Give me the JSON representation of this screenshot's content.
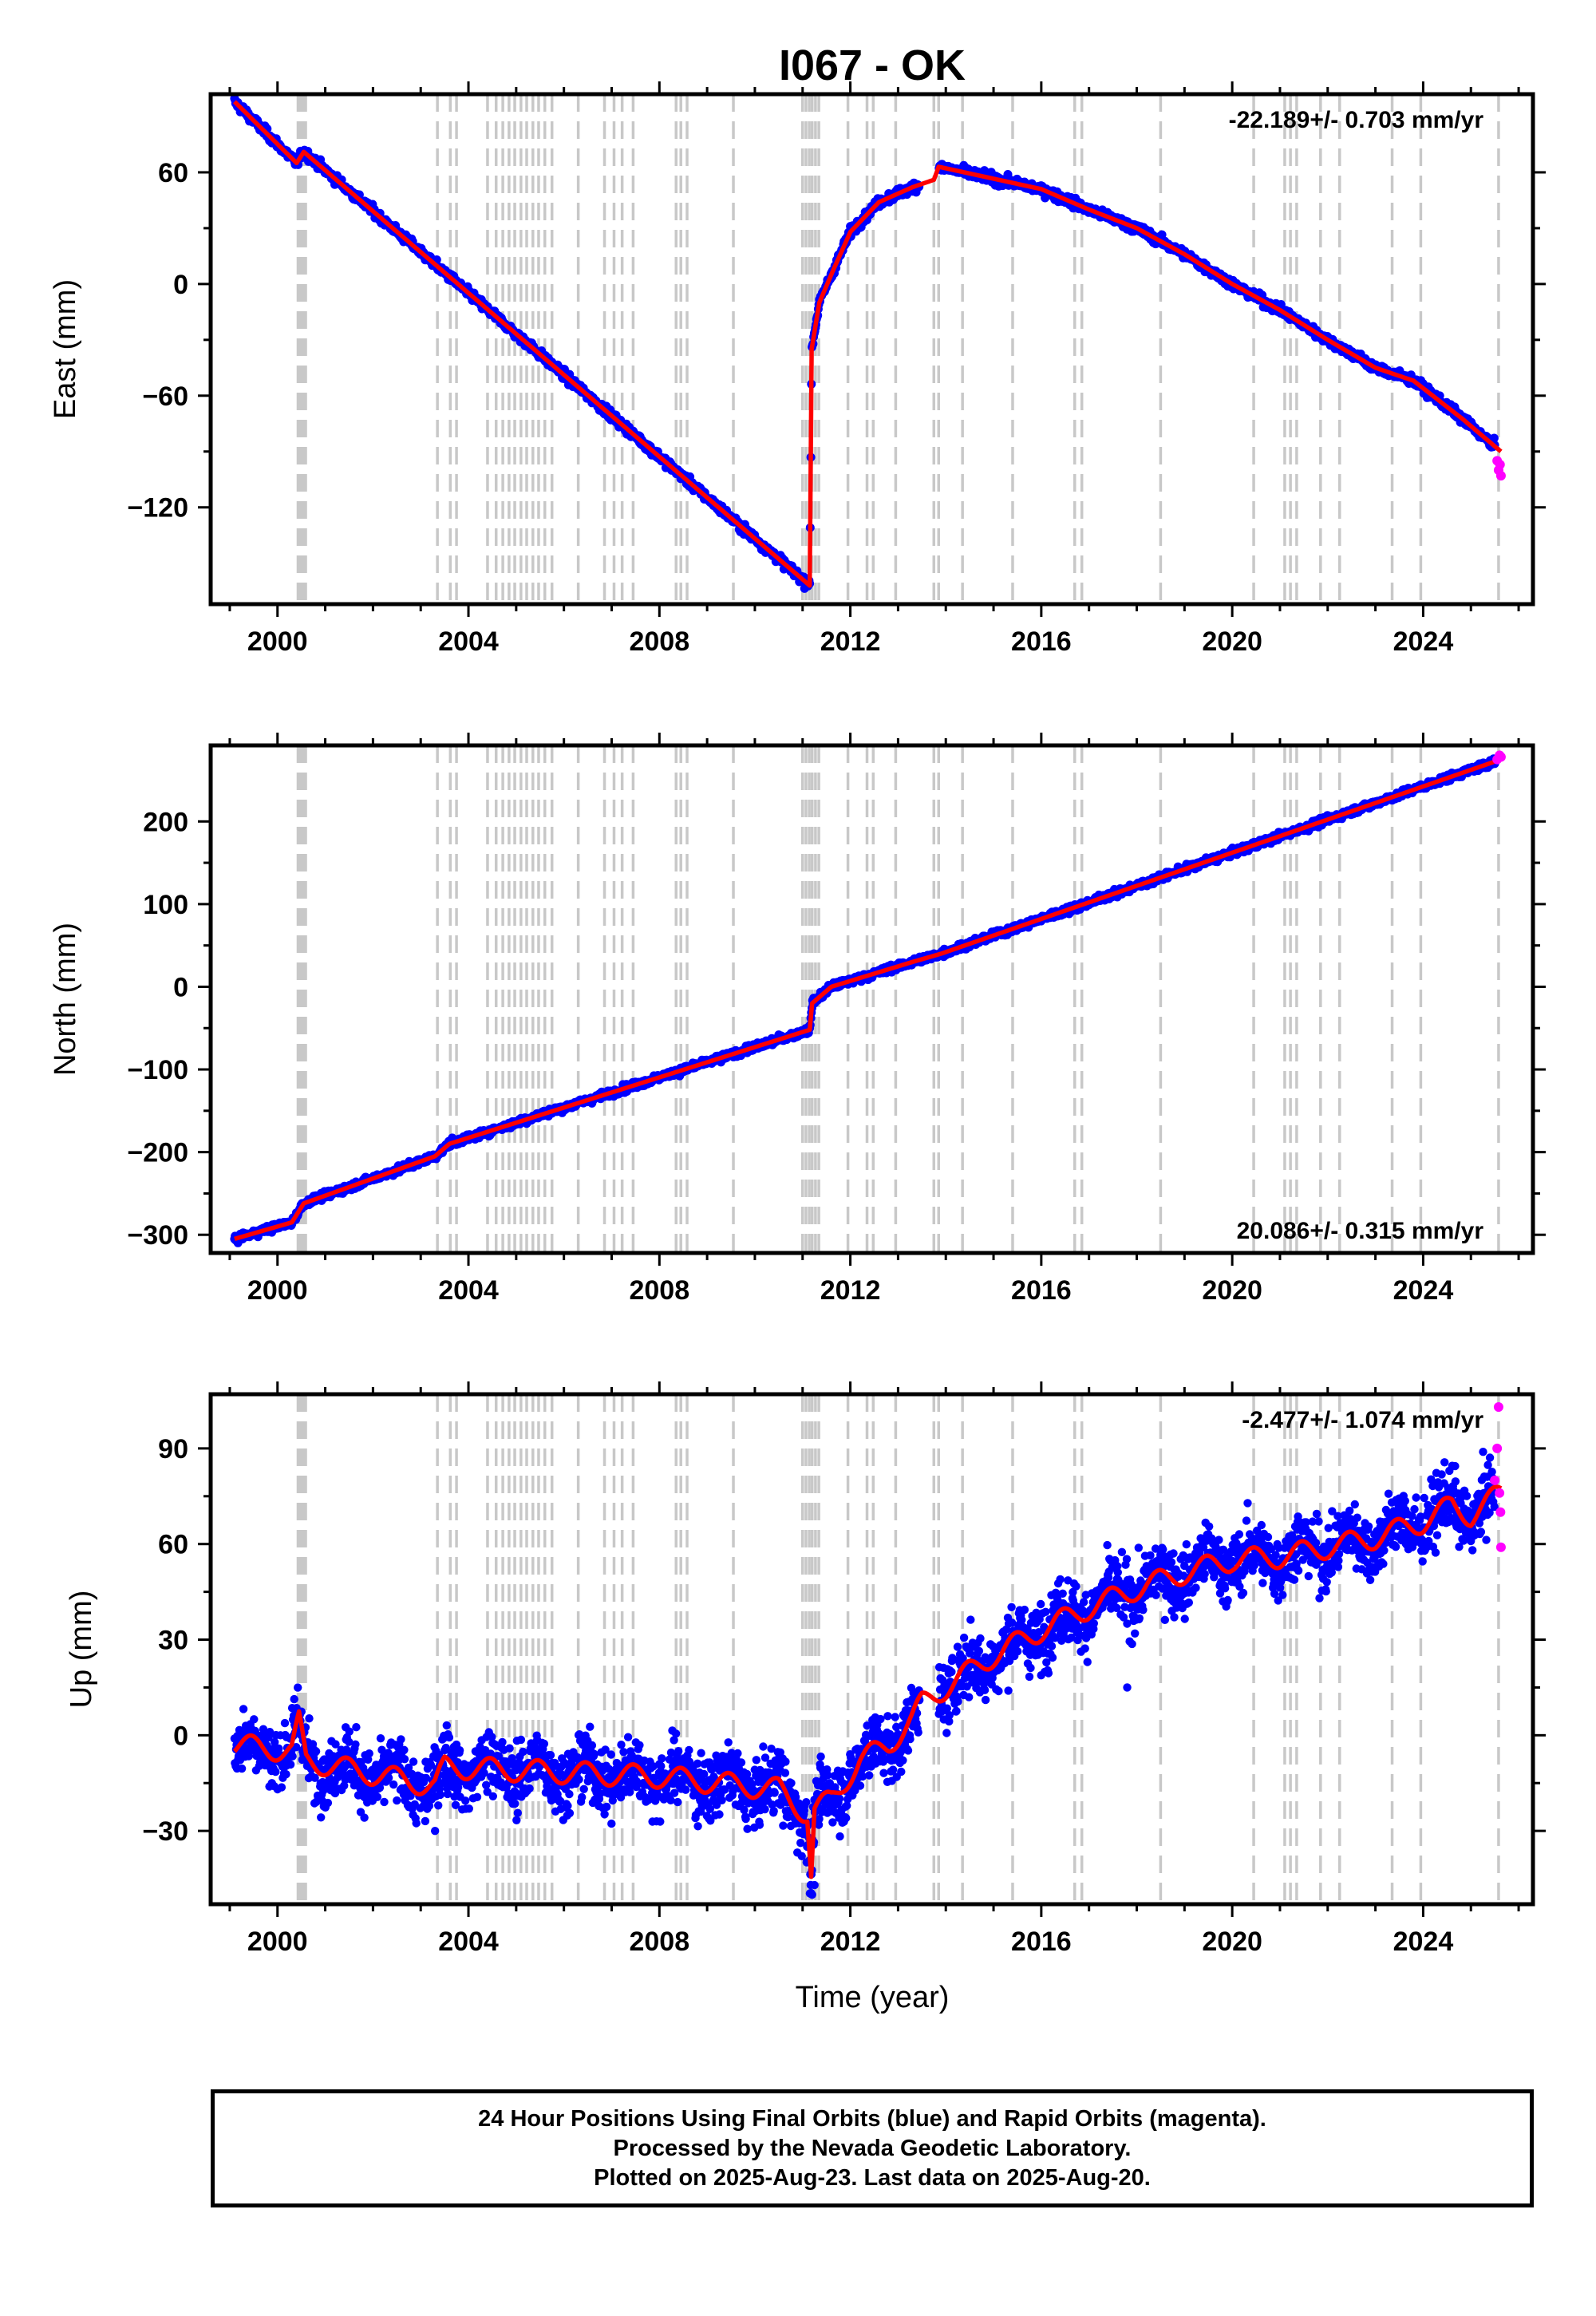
{
  "title": "I067 - OK",
  "colors": {
    "final": "#0000ff",
    "rapid": "#ff00ff",
    "model": "#ff0000",
    "steps": "#c8c8c8"
  },
  "footer": {
    "line1": "24 Hour Positions Using Final Orbits (blue) and Rapid Orbits (magenta).",
    "line2": "Processed by the Nevada Geodetic Laboratory.",
    "line3": "Plotted on 2025-Aug-23. Last data on 2025-Aug-20."
  },
  "chart_data": [
    {
      "type": "scatter",
      "ylabel": "East (mm)",
      "rate_text": "-22.189+/- 0.703 mm/yr",
      "rate_position": "top-right",
      "xlim": [
        1998.6,
        2026.3
      ],
      "ylim": [
        -172,
        102
      ],
      "xticks": [
        2000,
        2004,
        2008,
        2012,
        2016,
        2020,
        2024
      ],
      "yticks": [
        -120,
        -60,
        0,
        60
      ],
      "ytick_labels": [
        "−120",
        "−60",
        "0",
        "60"
      ],
      "noise_mm": 1.8,
      "model_anchors": [
        [
          1999.1,
          98
        ],
        [
          2000.4,
          65
        ],
        [
          2000.55,
          71
        ],
        [
          2011.15,
          -162
        ],
        [
          2011.19,
          -35
        ],
        [
          2011.35,
          -10
        ],
        [
          2011.6,
          5
        ],
        [
          2012.0,
          28
        ],
        [
          2012.6,
          44
        ],
        [
          2013.3,
          52
        ],
        [
          2013.75,
          56
        ],
        [
          2013.85,
          63
        ],
        [
          2016.0,
          51
        ],
        [
          2017.0,
          40
        ],
        [
          2018.0,
          30
        ],
        [
          2019.0,
          16
        ],
        [
          2020.0,
          0
        ],
        [
          2021.0,
          -14
        ],
        [
          2022.0,
          -30
        ],
        [
          2023.0,
          -45
        ],
        [
          2023.8,
          -52
        ],
        [
          2024.8,
          -72
        ],
        [
          2025.63,
          -90
        ]
      ],
      "rapid_points": [
        [
          2025.55,
          -95
        ],
        [
          2025.58,
          -100
        ],
        [
          2025.61,
          -97
        ],
        [
          2025.63,
          -103
        ]
      ]
    },
    {
      "type": "scatter",
      "ylabel": "North (mm)",
      "rate_text": "20.086+/- 0.315 mm/yr",
      "rate_position": "bottom-right",
      "xlim": [
        1998.6,
        2026.3
      ],
      "ylim": [
        -322,
        292
      ],
      "xticks": [
        2000,
        2004,
        2008,
        2012,
        2016,
        2020,
        2024
      ],
      "yticks": [
        -300,
        -200,
        -100,
        0,
        100,
        200
      ],
      "ytick_labels": [
        "−300",
        "−200",
        "−100",
        "0",
        "100",
        "200"
      ],
      "noise_mm": 3,
      "model_anchors": [
        [
          1999.1,
          -305
        ],
        [
          2000.3,
          -285
        ],
        [
          2000.55,
          -262
        ],
        [
          2003.3,
          -205
        ],
        [
          2003.6,
          -190
        ],
        [
          2011.15,
          -52
        ],
        [
          2011.2,
          -20
        ],
        [
          2011.6,
          0
        ],
        [
          2013.3,
          30
        ],
        [
          2013.9,
          40
        ],
        [
          2025.63,
          275
        ]
      ],
      "rapid_points": [
        [
          2025.55,
          275
        ],
        [
          2025.6,
          280
        ],
        [
          2025.63,
          278
        ]
      ]
    },
    {
      "type": "scatter",
      "ylabel": "Up (mm)",
      "xlabel": "Time (year)",
      "rate_text": "-2.477+/- 1.074 mm/yr",
      "rate_position": "top-right",
      "xlim": [
        1998.6,
        2026.3
      ],
      "ylim": [
        -53,
        107
      ],
      "xticks": [
        2000,
        2004,
        2008,
        2012,
        2016,
        2020,
        2024
      ],
      "yticks": [
        -30,
        0,
        30,
        60,
        90
      ],
      "ytick_labels": [
        "−30",
        "0",
        "30",
        "60",
        "90"
      ],
      "noise_mm": 7,
      "seasonal_mm": 3.5,
      "model_anchors": [
        [
          1999.1,
          -3
        ],
        [
          2000.3,
          -5
        ],
        [
          2000.45,
          4
        ],
        [
          2000.6,
          -8
        ],
        [
          2003.3,
          -16
        ],
        [
          2003.5,
          -10
        ],
        [
          2008.0,
          -13
        ],
        [
          2010.5,
          -17
        ],
        [
          2011.1,
          -25
        ],
        [
          2011.18,
          -44
        ],
        [
          2011.25,
          -24
        ],
        [
          2011.6,
          -20
        ],
        [
          2012.2,
          -8
        ],
        [
          2012.8,
          -3
        ],
        [
          2013.3,
          5
        ],
        [
          2013.5,
          10
        ],
        [
          2014.0,
          15
        ],
        [
          2015.0,
          25
        ],
        [
          2016.0,
          33
        ],
        [
          2017.0,
          40
        ],
        [
          2018.0,
          46
        ],
        [
          2019.0,
          51
        ],
        [
          2020.0,
          55
        ],
        [
          2021.0,
          56
        ],
        [
          2022.0,
          59
        ],
        [
          2023.0,
          62
        ],
        [
          2024.0,
          67
        ],
        [
          2024.6,
          72
        ],
        [
          2025.0,
          69
        ],
        [
          2025.63,
          76
        ]
      ],
      "rapid_points": [
        [
          2025.5,
          80
        ],
        [
          2025.55,
          90
        ],
        [
          2025.58,
          103
        ],
        [
          2025.6,
          76
        ],
        [
          2025.62,
          70
        ],
        [
          2025.63,
          59
        ]
      ]
    }
  ],
  "step_lines": [
    2000.43,
    2000.47,
    2000.51,
    2000.55,
    2000.59,
    2003.35,
    2003.62,
    2003.75,
    2004.4,
    2004.58,
    2004.72,
    2004.85,
    2004.97,
    2005.1,
    2005.22,
    2005.35,
    2005.47,
    2005.6,
    2005.75,
    2006.3,
    2006.85,
    2007.05,
    2007.22,
    2007.45,
    2008.35,
    2008.45,
    2008.58,
    2009.55,
    2011.0,
    2011.07,
    2011.14,
    2011.2,
    2011.27,
    2011.34,
    2011.95,
    2012.35,
    2012.48,
    2012.95,
    2013.75,
    2013.85,
    2014.35,
    2015.4,
    2016.7,
    2016.85,
    2018.5,
    2020.45,
    2021.1,
    2021.22,
    2021.35,
    2021.85,
    2022.25,
    2023.35,
    2023.95,
    2025.58
  ]
}
